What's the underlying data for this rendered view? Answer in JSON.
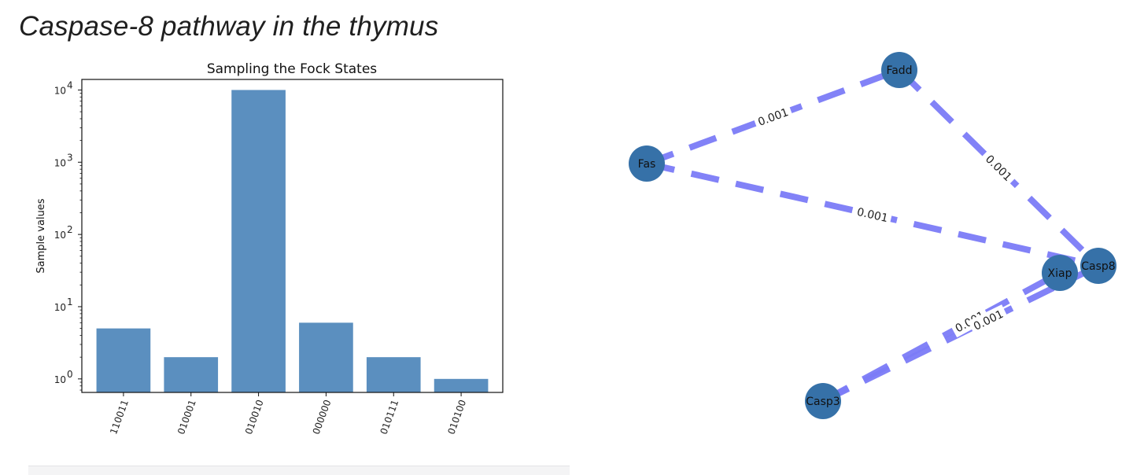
{
  "page": {
    "title": "Caspase-8 pathway in the thymus"
  },
  "chart_data": [
    {
      "type": "bar",
      "title": "Sampling the Fock States",
      "xlabel": "",
      "ylabel": "Sample values",
      "categories": [
        "110011",
        "010001",
        "010010",
        "000000",
        "010111",
        "010100"
      ],
      "values": [
        5,
        2,
        10000,
        6,
        2,
        1
      ],
      "yscale": "log",
      "ylim": [
        0.65,
        14000
      ],
      "yticks": [
        {
          "value": 1,
          "base": "10",
          "exp": "0"
        },
        {
          "value": 10,
          "base": "10",
          "exp": "1"
        },
        {
          "value": 100,
          "base": "10",
          "exp": "2"
        },
        {
          "value": 1000,
          "base": "10",
          "exp": "3"
        },
        {
          "value": 10000,
          "base": "10",
          "exp": "4"
        }
      ],
      "bar_color": "#5b8fbf",
      "grid": false
    },
    {
      "type": "network",
      "nodes": [
        "Fadd",
        "Fas",
        "Casp8",
        "Xiap",
        "Casp3"
      ],
      "edges": [
        {
          "source": "Fas",
          "target": "Fadd",
          "label": "0.001"
        },
        {
          "source": "Fadd",
          "target": "Casp8",
          "label": "0.001"
        },
        {
          "source": "Fas",
          "target": "Casp8",
          "label": "0.001"
        },
        {
          "source": "Casp3",
          "target": "Xiap",
          "label": "0.001"
        },
        {
          "source": "Casp3",
          "target": "Casp8",
          "label": "0.001"
        }
      ],
      "node_color": "#3671a8",
      "edge_color": "#7b7bf7",
      "edge_style": "dashed"
    }
  ]
}
